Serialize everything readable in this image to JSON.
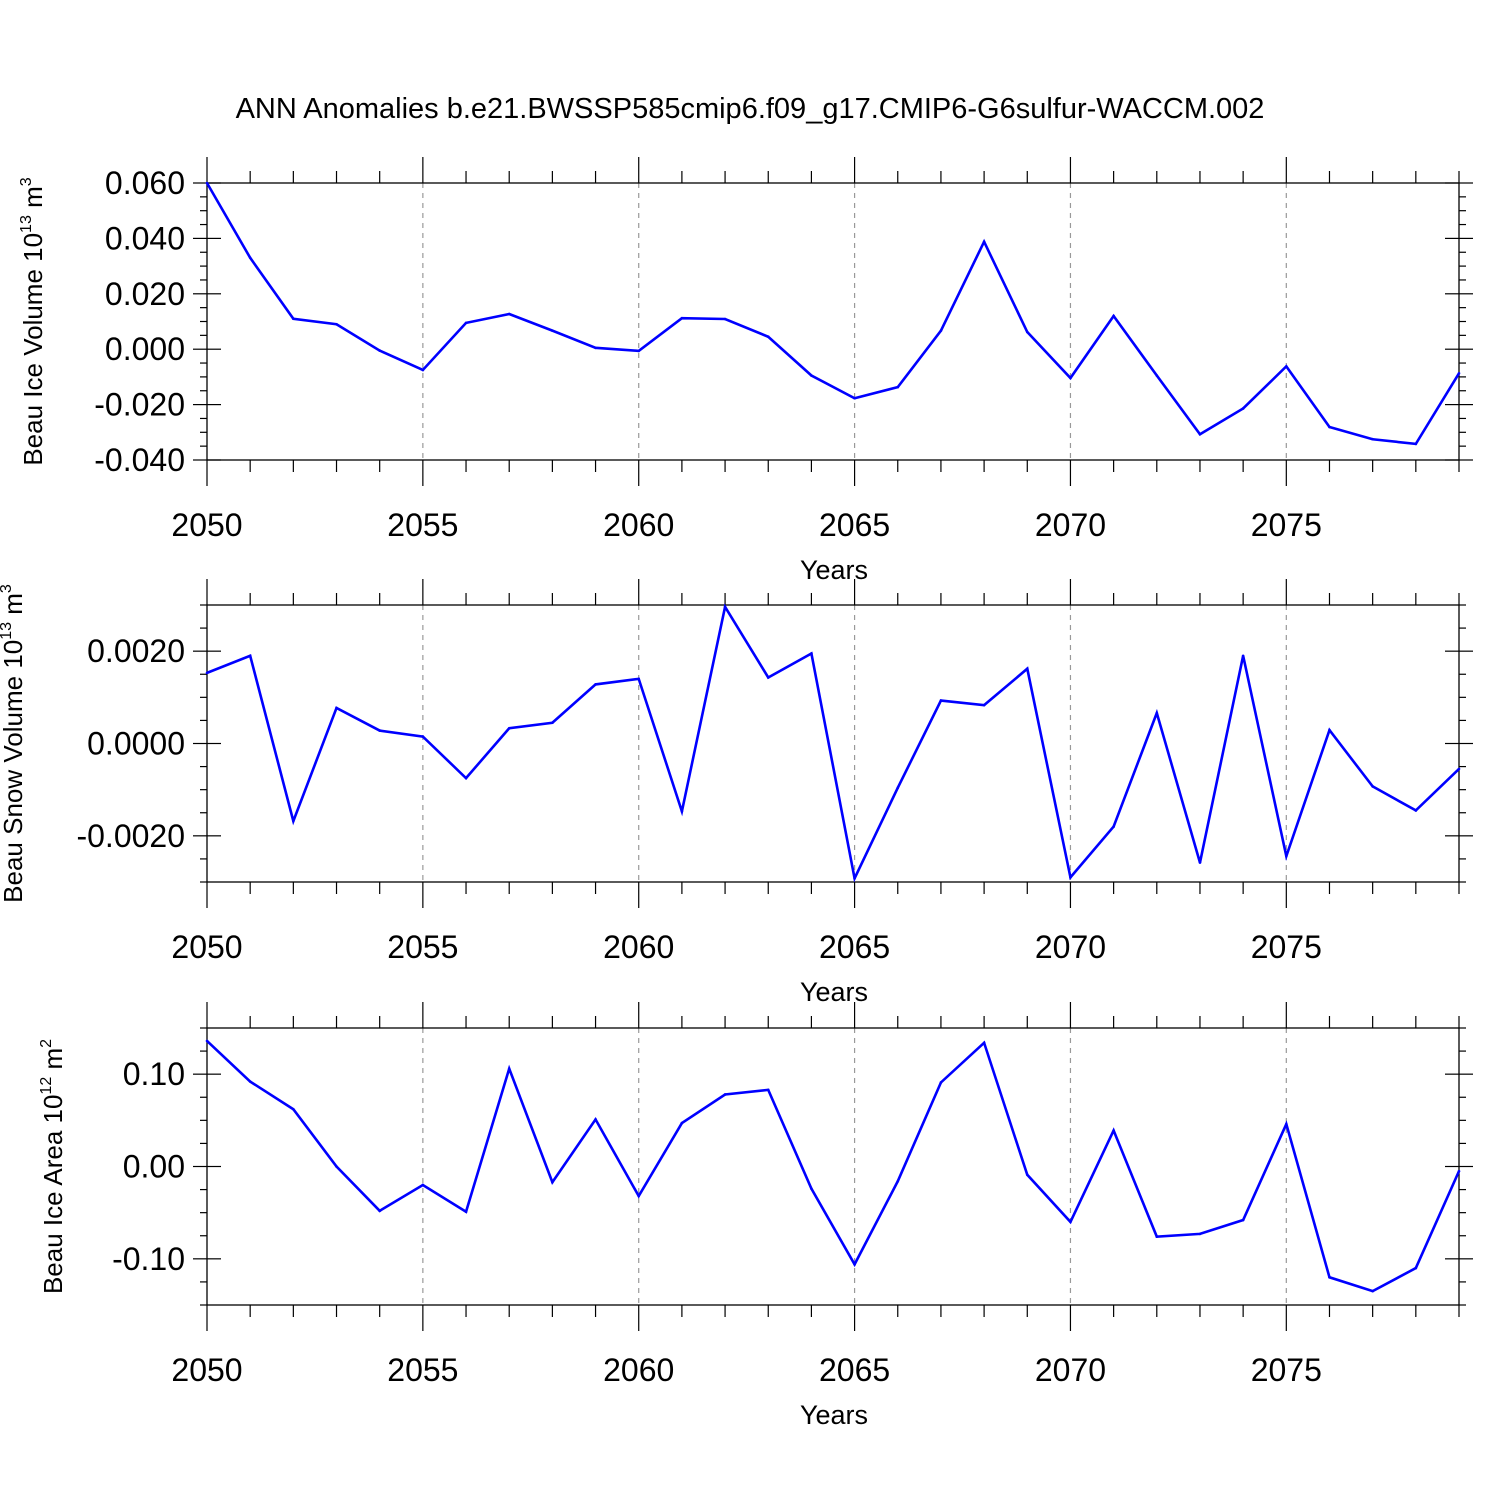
{
  "figure": {
    "title": "ANN Anomalies b.e21.BWSSP585cmip6.f09_g17.CMIP6-G6sulfur-WACCM.002",
    "line_color": "#0000ff",
    "grid_color": "#999999"
  },
  "chart_data": [
    {
      "type": "line",
      "ylabel": "Beau Ice Volume 10",
      "ylabel_exp": "13",
      "ylabel_unit": " m",
      "ylabel_unit_exp": "3",
      "xlabel": "Years",
      "xlim": [
        2050,
        2079
      ],
      "ylim": [
        -0.04,
        0.06
      ],
      "yticks": [
        -0.04,
        -0.02,
        0.0,
        0.02,
        0.04,
        0.06
      ],
      "ytick_labels": [
        "-0.040",
        "-0.020",
        "0.000",
        "0.020",
        "0.040",
        "0.060"
      ],
      "xticks": [
        2050,
        2055,
        2060,
        2065,
        2070,
        2075
      ],
      "xtick_labels": [
        "2050",
        "2055",
        "2060",
        "2065",
        "2070",
        "2075"
      ],
      "x": [
        2050,
        2051,
        2052,
        2053,
        2054,
        2055,
        2056,
        2057,
        2058,
        2059,
        2060,
        2061,
        2062,
        2063,
        2064,
        2065,
        2066,
        2067,
        2068,
        2069,
        2070,
        2071,
        2072,
        2073,
        2074,
        2075,
        2076,
        2077,
        2078,
        2079
      ],
      "values": [
        0.06,
        0.033,
        0.011,
        0.009,
        -0.0005,
        -0.0075,
        0.0095,
        0.0127,
        0.0067,
        0.0005,
        -0.0006,
        0.0112,
        0.0109,
        0.0045,
        -0.0095,
        -0.0177,
        -0.0137,
        0.0067,
        0.0388,
        0.0062,
        -0.0104,
        0.012,
        -0.0095,
        -0.0307,
        -0.0214,
        -0.0062,
        -0.0281,
        -0.0325,
        -0.0342,
        -0.0087
      ]
    },
    {
      "type": "line",
      "ylabel": "Beau Snow Volume 10",
      "ylabel_exp": "13",
      "ylabel_unit": " m",
      "ylabel_unit_exp": "3",
      "xlabel": "Years",
      "xlim": [
        2050,
        2079
      ],
      "ylim": [
        -0.003,
        0.003
      ],
      "yticks": [
        -0.002,
        0.0,
        0.002
      ],
      "ytick_labels": [
        "-0.0020",
        "0.0000",
        "0.0020"
      ],
      "xticks": [
        2050,
        2055,
        2060,
        2065,
        2070,
        2075
      ],
      "xtick_labels": [
        "2050",
        "2055",
        "2060",
        "2065",
        "2070",
        "2075"
      ],
      "x": [
        2050,
        2051,
        2052,
        2053,
        2054,
        2055,
        2056,
        2057,
        2058,
        2059,
        2060,
        2061,
        2062,
        2063,
        2064,
        2065,
        2066,
        2067,
        2068,
        2069,
        2070,
        2071,
        2072,
        2073,
        2074,
        2075,
        2076,
        2077,
        2078,
        2079
      ],
      "values": [
        0.00153,
        0.0019,
        -0.00168,
        0.00077,
        0.00028,
        0.00015,
        -0.00075,
        0.00033,
        0.00045,
        0.00128,
        0.0014,
        -0.00147,
        0.00296,
        0.00143,
        0.00195,
        -0.00292,
        -0.00096,
        0.00093,
        0.00083,
        0.00162,
        -0.0029,
        -0.0018,
        0.00066,
        -0.00258,
        0.0019,
        -0.00244,
        0.00029,
        -0.00093,
        -0.00145,
        -0.00055
      ]
    },
    {
      "type": "line",
      "ylabel": "Beau Ice Area 10",
      "ylabel_exp": "12",
      "ylabel_unit": " m",
      "ylabel_unit_exp": "2",
      "xlabel": "Years",
      "xlim": [
        2050,
        2079
      ],
      "ylim": [
        -0.15,
        0.15
      ],
      "yticks": [
        -0.1,
        0.0,
        0.1
      ],
      "ytick_labels": [
        "-0.10",
        "0.00",
        "0.10"
      ],
      "xticks": [
        2050,
        2055,
        2060,
        2065,
        2070,
        2075
      ],
      "xtick_labels": [
        "2050",
        "2055",
        "2060",
        "2065",
        "2070",
        "2075"
      ],
      "x": [
        2050,
        2051,
        2052,
        2053,
        2054,
        2055,
        2056,
        2057,
        2058,
        2059,
        2060,
        2061,
        2062,
        2063,
        2064,
        2065,
        2066,
        2067,
        2068,
        2069,
        2070,
        2071,
        2072,
        2073,
        2074,
        2075,
        2076,
        2077,
        2078,
        2079
      ],
      "values": [
        0.136,
        0.092,
        0.062,
        0.0,
        -0.048,
        -0.02,
        -0.049,
        0.106,
        -0.017,
        0.051,
        -0.032,
        0.047,
        0.078,
        0.083,
        -0.024,
        -0.106,
        -0.016,
        0.091,
        0.134,
        -0.009,
        -0.06,
        0.039,
        -0.076,
        -0.073,
        -0.058,
        0.046,
        -0.12,
        -0.135,
        -0.11,
        -0.005
      ]
    }
  ]
}
